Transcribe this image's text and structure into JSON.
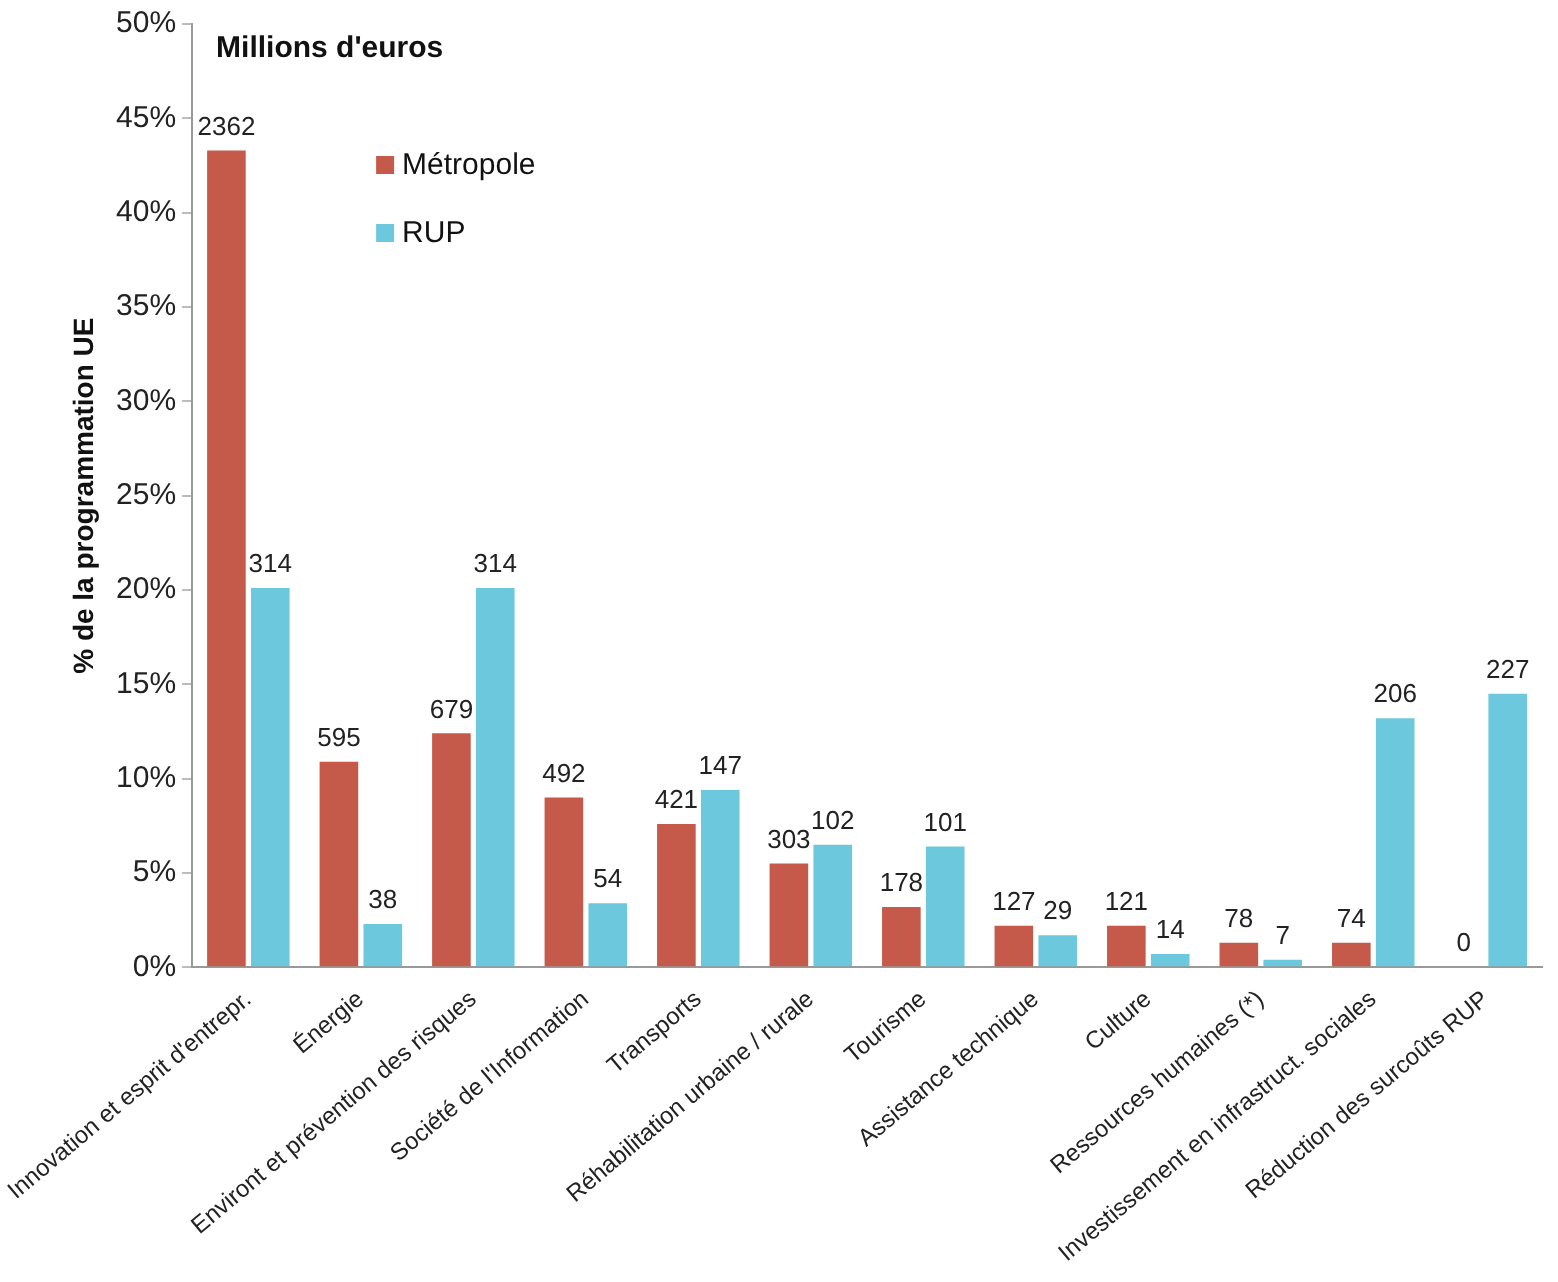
{
  "chart_data": {
    "type": "bar",
    "ylabel": "% de la programmation UE",
    "annotations": [
      "Millions d'euros",
      {
        "text": "2362",
        "x": "Innovation et esprit d'entrepr.",
        "y": 43.3
      },
      {
        "text": "314",
        "x": "Innovation et esprit d'entrepr.",
        "y": 20.1
      },
      {
        "text": "595",
        "x": "Énergie",
        "y": 10.9
      },
      {
        "text": "38",
        "x": "Énergie",
        "y": 2.3
      },
      {
        "text": "679",
        "x": "Environt et prévention des risques",
        "y": 12.4
      },
      {
        "text": "314",
        "x": "Environt et prévention des risques",
        "y": 20.1
      },
      {
        "text": "492",
        "x": "Société de l'Information",
        "y": 9.0
      },
      {
        "text": "54",
        "x": "Société de l'Information",
        "y": 3.4
      },
      {
        "text": "421",
        "x": "Transports",
        "y": 7.6
      },
      {
        "text": "147",
        "x": "Transports",
        "y": 9.4
      },
      {
        "text": "303",
        "x": "Réhabilitation urbaine / rurale",
        "y": 5.5
      },
      {
        "text": "102",
        "x": "Réhabilitation urbaine / rurale",
        "y": 6.5
      },
      {
        "text": "178",
        "x": "Tourisme",
        "y": 3.2
      },
      {
        "text": "101",
        "x": "Tourisme",
        "y": 6.4
      },
      {
        "text": "127",
        "x": "Assistance technique",
        "y": 2.2
      },
      {
        "text": "29",
        "x": "Assistance technique",
        "y": 1.7
      },
      {
        "text": "121",
        "x": "Culture",
        "y": 2.2
      },
      {
        "text": "14",
        "x": "Culture",
        "y": 0.7
      },
      {
        "text": "78",
        "x": "Ressources humaines (*)",
        "y": 1.3
      },
      {
        "text": "7",
        "x": "Ressources humaines (*)",
        "y": 0.4
      },
      {
        "text": "74",
        "x": "Investissement en infrastruct. sociales",
        "y": 1.3
      },
      {
        "text": "206",
        "x": "Investissement en infrastruct. sociales",
        "y": 13.2
      },
      {
        "text": "0",
        "x": "Réduction des surcoûts RUP",
        "y": 0
      },
      {
        "text": "227",
        "x": "Réduction des surcoûts RUP",
        "y": 14.5
      }
    ],
    "categories": [
      "Innovation et esprit d'entrepr.",
      "Énergie",
      "Environt et prévention des risques",
      "Société de l'Information",
      "Transports",
      "Réhabilitation urbaine / rurale",
      "Tourisme",
      "Assistance technique",
      "Culture",
      "Ressources humaines (*)",
      "Investissement en infrastruct. sociales",
      "Réduction des surcoûts RUP"
    ],
    "series": [
      {
        "name": "Métropole",
        "color": "#c55a4a",
        "values": [
          43.3,
          10.9,
          12.4,
          9.0,
          7.6,
          5.5,
          3.2,
          2.2,
          2.2,
          1.3,
          1.3,
          0
        ]
      },
      {
        "name": "RUP",
        "color": "#6cc8dc",
        "values": [
          20.1,
          2.3,
          20.1,
          3.4,
          9.4,
          6.5,
          6.4,
          1.7,
          0.7,
          0.4,
          13.2,
          14.5
        ]
      }
    ],
    "ylim": [
      0,
      50
    ],
    "yticks": [
      {
        "value": 0,
        "label": "0%"
      },
      {
        "value": 5,
        "label": "5%"
      },
      {
        "value": 10,
        "label": "10%"
      },
      {
        "value": 15,
        "label": "15%"
      },
      {
        "value": 20,
        "label": "20%"
      },
      {
        "value": 25,
        "label": "25%"
      },
      {
        "value": 30,
        "label": "30%"
      },
      {
        "value": 35,
        "label": "35%"
      },
      {
        "value": 40,
        "label": "40%"
      },
      {
        "value": 45,
        "label": "45%"
      },
      {
        "value": 50,
        "label": "50%"
      }
    ],
    "grid": false,
    "legend": "top left"
  }
}
